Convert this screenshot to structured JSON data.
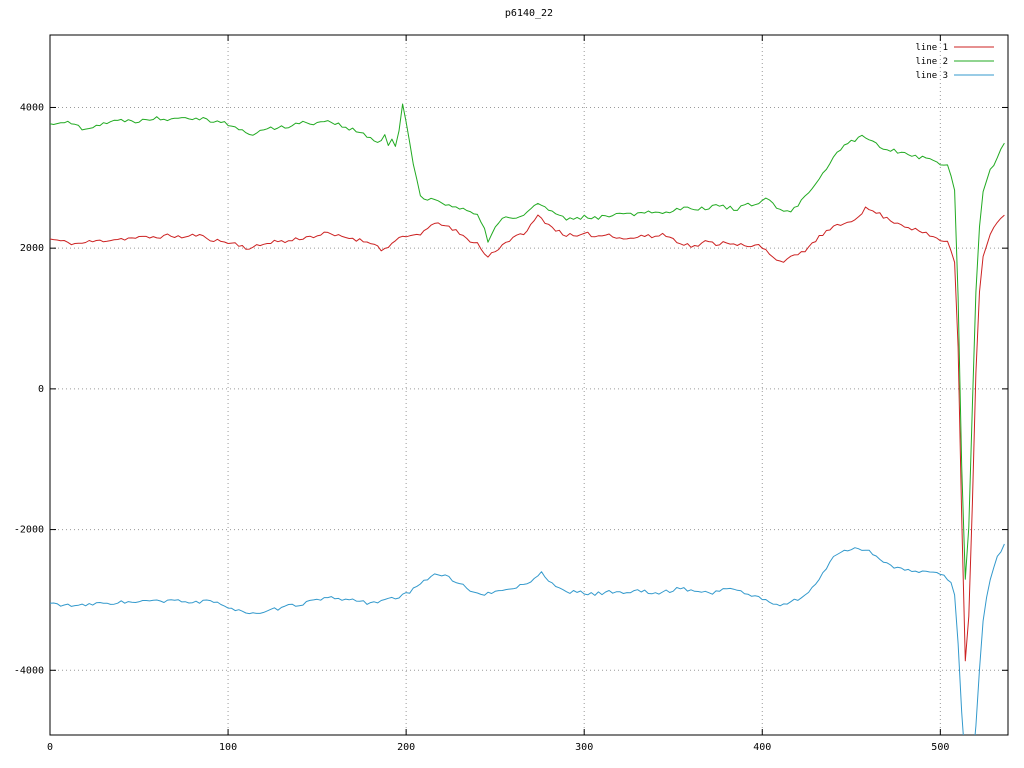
{
  "chart_data": {
    "type": "line",
    "title": "p6140_22",
    "xlabel": "",
    "ylabel": "",
    "xlim": [
      0,
      538
    ],
    "ylim": [
      -4920,
      5030
    ],
    "xticks": [
      0,
      100,
      200,
      300,
      400,
      500
    ],
    "yticks": [
      -4000,
      -2000,
      0,
      2000,
      4000
    ],
    "grid": true,
    "legend_position": "top-right",
    "background": "#ffffff",
    "axis_color": "#000000",
    "grid_color": "#9a9a9a",
    "tick_label_color": "#000000",
    "series": [
      {
        "name": "line 1",
        "color": "#cc2222",
        "noise": 28,
        "seed": 11,
        "points": [
          [
            0,
            2130
          ],
          [
            8,
            2090
          ],
          [
            15,
            2060
          ],
          [
            22,
            2090
          ],
          [
            30,
            2110
          ],
          [
            38,
            2130
          ],
          [
            45,
            2140
          ],
          [
            52,
            2150
          ],
          [
            60,
            2160
          ],
          [
            68,
            2180
          ],
          [
            75,
            2150
          ],
          [
            82,
            2190
          ],
          [
            90,
            2130
          ],
          [
            97,
            2090
          ],
          [
            105,
            2060
          ],
          [
            112,
            1990
          ],
          [
            118,
            2040
          ],
          [
            125,
            2100
          ],
          [
            132,
            2090
          ],
          [
            140,
            2140
          ],
          [
            148,
            2170
          ],
          [
            155,
            2210
          ],
          [
            162,
            2170
          ],
          [
            170,
            2140
          ],
          [
            176,
            2100
          ],
          [
            182,
            2080
          ],
          [
            186,
            1960
          ],
          [
            191,
            2050
          ],
          [
            196,
            2130
          ],
          [
            202,
            2170
          ],
          [
            208,
            2210
          ],
          [
            214,
            2300
          ],
          [
            218,
            2380
          ],
          [
            222,
            2310
          ],
          [
            228,
            2240
          ],
          [
            234,
            2130
          ],
          [
            240,
            2070
          ],
          [
            245,
            1870
          ],
          [
            250,
            1960
          ],
          [
            256,
            2090
          ],
          [
            262,
            2160
          ],
          [
            268,
            2250
          ],
          [
            274,
            2460
          ],
          [
            278,
            2380
          ],
          [
            284,
            2260
          ],
          [
            290,
            2190
          ],
          [
            296,
            2160
          ],
          [
            302,
            2200
          ],
          [
            308,
            2170
          ],
          [
            314,
            2200
          ],
          [
            320,
            2150
          ],
          [
            326,
            2130
          ],
          [
            332,
            2180
          ],
          [
            338,
            2160
          ],
          [
            344,
            2200
          ],
          [
            350,
            2130
          ],
          [
            356,
            2060
          ],
          [
            362,
            2020
          ],
          [
            368,
            2090
          ],
          [
            374,
            2060
          ],
          [
            380,
            2090
          ],
          [
            386,
            2060
          ],
          [
            392,
            2010
          ],
          [
            398,
            2040
          ],
          [
            404,
            1930
          ],
          [
            410,
            1810
          ],
          [
            416,
            1860
          ],
          [
            422,
            1930
          ],
          [
            428,
            2060
          ],
          [
            434,
            2200
          ],
          [
            440,
            2290
          ],
          [
            446,
            2350
          ],
          [
            452,
            2420
          ],
          [
            458,
            2560
          ],
          [
            464,
            2510
          ],
          [
            470,
            2420
          ],
          [
            476,
            2360
          ],
          [
            482,
            2300
          ],
          [
            488,
            2240
          ],
          [
            494,
            2180
          ],
          [
            500,
            2120
          ],
          [
            505,
            2060
          ],
          [
            508,
            1800
          ],
          [
            510,
            600
          ],
          [
            512,
            -1800
          ],
          [
            514,
            -3850
          ],
          [
            515,
            -3880
          ],
          [
            517,
            -2600
          ],
          [
            519,
            -600
          ],
          [
            521,
            1100
          ],
          [
            524,
            1900
          ],
          [
            528,
            2200
          ],
          [
            533,
            2400
          ],
          [
            537,
            2480
          ]
        ]
      },
      {
        "name": "line 2",
        "color": "#22aa22",
        "noise": 30,
        "seed": 22,
        "points": [
          [
            0,
            3760
          ],
          [
            6,
            3800
          ],
          [
            12,
            3770
          ],
          [
            18,
            3710
          ],
          [
            24,
            3730
          ],
          [
            30,
            3780
          ],
          [
            36,
            3800
          ],
          [
            42,
            3820
          ],
          [
            48,
            3810
          ],
          [
            54,
            3830
          ],
          [
            60,
            3850
          ],
          [
            66,
            3840
          ],
          [
            72,
            3870
          ],
          [
            78,
            3860
          ],
          [
            84,
            3850
          ],
          [
            90,
            3820
          ],
          [
            96,
            3800
          ],
          [
            102,
            3740
          ],
          [
            108,
            3660
          ],
          [
            114,
            3620
          ],
          [
            120,
            3680
          ],
          [
            126,
            3710
          ],
          [
            132,
            3730
          ],
          [
            138,
            3760
          ],
          [
            144,
            3790
          ],
          [
            150,
            3780
          ],
          [
            156,
            3820
          ],
          [
            162,
            3760
          ],
          [
            168,
            3700
          ],
          [
            174,
            3640
          ],
          [
            180,
            3560
          ],
          [
            184,
            3500
          ],
          [
            188,
            3590
          ],
          [
            191,
            3400
          ],
          [
            193,
            3640
          ],
          [
            195,
            3250
          ],
          [
            197,
            4100
          ],
          [
            199,
            3980
          ],
          [
            202,
            3500
          ],
          [
            205,
            3080
          ],
          [
            208,
            2760
          ],
          [
            211,
            2670
          ],
          [
            215,
            2700
          ],
          [
            220,
            2660
          ],
          [
            225,
            2610
          ],
          [
            230,
            2560
          ],
          [
            235,
            2520
          ],
          [
            240,
            2450
          ],
          [
            243,
            2340
          ],
          [
            246,
            2110
          ],
          [
            250,
            2300
          ],
          [
            255,
            2440
          ],
          [
            260,
            2410
          ],
          [
            265,
            2460
          ],
          [
            270,
            2560
          ],
          [
            275,
            2640
          ],
          [
            280,
            2540
          ],
          [
            285,
            2460
          ],
          [
            290,
            2410
          ],
          [
            296,
            2430
          ],
          [
            302,
            2450
          ],
          [
            308,
            2420
          ],
          [
            314,
            2470
          ],
          [
            320,
            2520
          ],
          [
            326,
            2480
          ],
          [
            332,
            2510
          ],
          [
            338,
            2530
          ],
          [
            344,
            2490
          ],
          [
            350,
            2540
          ],
          [
            356,
            2590
          ],
          [
            362,
            2570
          ],
          [
            368,
            2560
          ],
          [
            374,
            2610
          ],
          [
            380,
            2580
          ],
          [
            386,
            2560
          ],
          [
            392,
            2610
          ],
          [
            398,
            2660
          ],
          [
            404,
            2700
          ],
          [
            408,
            2550
          ],
          [
            412,
            2510
          ],
          [
            416,
            2530
          ],
          [
            420,
            2610
          ],
          [
            425,
            2740
          ],
          [
            430,
            2900
          ],
          [
            435,
            3090
          ],
          [
            440,
            3290
          ],
          [
            445,
            3440
          ],
          [
            450,
            3510
          ],
          [
            455,
            3590
          ],
          [
            460,
            3550
          ],
          [
            465,
            3460
          ],
          [
            470,
            3410
          ],
          [
            476,
            3380
          ],
          [
            482,
            3340
          ],
          [
            488,
            3300
          ],
          [
            494,
            3260
          ],
          [
            500,
            3210
          ],
          [
            505,
            3160
          ],
          [
            508,
            2800
          ],
          [
            510,
            1300
          ],
          [
            512,
            -1100
          ],
          [
            514,
            -2680
          ],
          [
            515,
            -2720
          ],
          [
            517,
            -1200
          ],
          [
            519,
            700
          ],
          [
            521,
            2100
          ],
          [
            524,
            2800
          ],
          [
            528,
            3100
          ],
          [
            533,
            3350
          ],
          [
            537,
            3520
          ]
        ]
      },
      {
        "name": "line 3",
        "color": "#3399cc",
        "noise": 25,
        "seed": 33,
        "points": [
          [
            0,
            -3050
          ],
          [
            8,
            -3070
          ],
          [
            16,
            -3090
          ],
          [
            24,
            -3060
          ],
          [
            32,
            -3050
          ],
          [
            40,
            -3030
          ],
          [
            48,
            -3040
          ],
          [
            56,
            -3010
          ],
          [
            64,
            -3030
          ],
          [
            72,
            -3000
          ],
          [
            80,
            -3040
          ],
          [
            88,
            -3020
          ],
          [
            96,
            -3060
          ],
          [
            104,
            -3130
          ],
          [
            112,
            -3190
          ],
          [
            118,
            -3210
          ],
          [
            124,
            -3150
          ],
          [
            130,
            -3110
          ],
          [
            136,
            -3080
          ],
          [
            142,
            -3050
          ],
          [
            148,
            -3010
          ],
          [
            154,
            -2990
          ],
          [
            160,
            -2970
          ],
          [
            166,
            -2990
          ],
          [
            172,
            -3010
          ],
          [
            178,
            -3040
          ],
          [
            184,
            -3020
          ],
          [
            190,
            -3000
          ],
          [
            196,
            -2960
          ],
          [
            202,
            -2890
          ],
          [
            208,
            -2780
          ],
          [
            214,
            -2650
          ],
          [
            218,
            -2620
          ],
          [
            224,
            -2690
          ],
          [
            230,
            -2760
          ],
          [
            236,
            -2860
          ],
          [
            242,
            -2940
          ],
          [
            248,
            -2900
          ],
          [
            254,
            -2860
          ],
          [
            260,
            -2830
          ],
          [
            266,
            -2790
          ],
          [
            272,
            -2690
          ],
          [
            276,
            -2620
          ],
          [
            282,
            -2760
          ],
          [
            288,
            -2870
          ],
          [
            294,
            -2890
          ],
          [
            300,
            -2900
          ],
          [
            306,
            -2920
          ],
          [
            312,
            -2890
          ],
          [
            318,
            -2880
          ],
          [
            324,
            -2900
          ],
          [
            330,
            -2870
          ],
          [
            336,
            -2890
          ],
          [
            342,
            -2910
          ],
          [
            348,
            -2870
          ],
          [
            354,
            -2830
          ],
          [
            360,
            -2860
          ],
          [
            366,
            -2890
          ],
          [
            372,
            -2900
          ],
          [
            378,
            -2840
          ],
          [
            384,
            -2850
          ],
          [
            390,
            -2900
          ],
          [
            396,
            -2950
          ],
          [
            402,
            -3010
          ],
          [
            408,
            -3070
          ],
          [
            414,
            -3050
          ],
          [
            420,
            -2990
          ],
          [
            426,
            -2890
          ],
          [
            432,
            -2720
          ],
          [
            436,
            -2550
          ],
          [
            440,
            -2380
          ],
          [
            444,
            -2310
          ],
          [
            448,
            -2290
          ],
          [
            454,
            -2260
          ],
          [
            460,
            -2310
          ],
          [
            466,
            -2410
          ],
          [
            472,
            -2510
          ],
          [
            478,
            -2560
          ],
          [
            484,
            -2600
          ],
          [
            490,
            -2590
          ],
          [
            496,
            -2620
          ],
          [
            502,
            -2660
          ],
          [
            506,
            -2730
          ],
          [
            508,
            -2950
          ],
          [
            510,
            -3600
          ],
          [
            512,
            -4600
          ],
          [
            514,
            -5300
          ],
          [
            516,
            -5500
          ],
          [
            518,
            -5350
          ],
          [
            520,
            -4800
          ],
          [
            522,
            -4000
          ],
          [
            524,
            -3300
          ],
          [
            527,
            -2800
          ],
          [
            531,
            -2450
          ],
          [
            535,
            -2250
          ],
          [
            537,
            -2200
          ]
        ]
      }
    ]
  }
}
